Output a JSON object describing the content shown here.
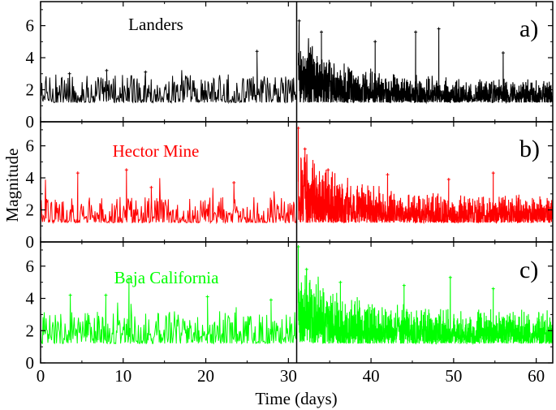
{
  "chart_data": {
    "type": "scatter",
    "description_style": "magnitude time series, three stacked panels sharing the x axis",
    "xlabel": "Time (days)",
    "ylabel": "Magnitude",
    "xlim": [
      0,
      62
    ],
    "ylim": [
      0,
      7.5
    ],
    "x_ticks": [
      0,
      10,
      20,
      30,
      40,
      50,
      60
    ],
    "y_ticks": [
      0,
      2,
      4,
      6
    ],
    "split_at": 31,
    "panels": [
      {
        "label": "a)",
        "title": "Landers",
        "color": "#000000",
        "baseline": 1.2,
        "pre_event": {
          "mean": 1.75,
          "spread": 0.55,
          "max": 4.4,
          "peaks": [
            [
              3.5,
              3.0
            ],
            [
              8.0,
              3.2
            ],
            [
              12.7,
              3.1
            ],
            [
              26.2,
              4.4
            ]
          ]
        },
        "post_event": {
          "start": 31.2,
          "initial_max": 6.5,
          "decay_to": 2.8,
          "peaks": [
            [
              31.3,
              6.3
            ],
            [
              34.0,
              5.6
            ],
            [
              40.5,
              5.0
            ],
            [
              45.4,
              5.6
            ],
            [
              48.2,
              5.8
            ],
            [
              56.0,
              4.3
            ]
          ]
        }
      },
      {
        "label": "b)",
        "title": "Hector Mine",
        "color": "#ff0000",
        "baseline": 1.2,
        "pre_event": {
          "mean": 1.7,
          "spread": 0.5,
          "max": 4.5,
          "peaks": [
            [
              4.5,
              4.3
            ],
            [
              10.4,
              4.5
            ],
            [
              13.4,
              3.4
            ],
            [
              23.4,
              3.7
            ]
          ]
        },
        "post_event": {
          "start": 31.2,
          "initial_max": 7.1,
          "decay_to": 3.0,
          "peaks": [
            [
              31.2,
              7.1
            ],
            [
              32.0,
              5.8
            ],
            [
              34.8,
              4.5
            ],
            [
              42.0,
              4.2
            ],
            [
              49.4,
              3.9
            ],
            [
              54.8,
              4.3
            ]
          ]
        }
      },
      {
        "label": "c)",
        "title": "Baja California",
        "color": "#00ff00",
        "baseline": 1.2,
        "pre_event": {
          "mean": 1.85,
          "spread": 0.6,
          "max": 5.2,
          "peaks": [
            [
              3.6,
              4.2
            ],
            [
              7.9,
              4.2
            ],
            [
              10.7,
              5.2
            ],
            [
              20.2,
              4.1
            ],
            [
              27.9,
              3.9
            ]
          ]
        },
        "post_event": {
          "start": 31.2,
          "initial_max": 7.2,
          "decay_to": 3.4,
          "peaks": [
            [
              31.2,
              7.2
            ],
            [
              32.2,
              5.8
            ],
            [
              36.3,
              5.0
            ],
            [
              44.0,
              4.8
            ],
            [
              49.6,
              5.3
            ],
            [
              54.8,
              4.6
            ]
          ]
        }
      }
    ]
  }
}
